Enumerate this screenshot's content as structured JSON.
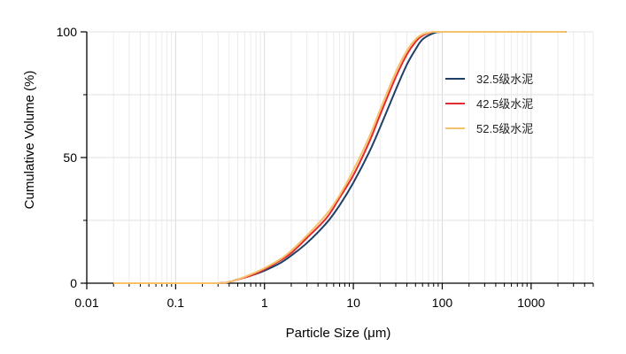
{
  "chart_data": {
    "type": "line",
    "xscale": "log",
    "xlim": [
      0.01,
      5000
    ],
    "ylim": [
      0,
      100
    ],
    "grid": true,
    "xlabel": "Particle Size (μm)",
    "ylabel": "Cumulative Volume (%)",
    "x_ticks": [
      "0.01",
      "0.1",
      "1",
      "10",
      "100",
      "1000"
    ],
    "y_ticks": [
      "0",
      "50",
      "100"
    ],
    "legend_position": "right",
    "series": [
      {
        "name": "32.5级水泥",
        "color": "#1f3f66",
        "x": [
          0.02,
          0.1,
          0.3,
          0.4,
          0.5,
          0.7,
          1,
          1.5,
          2,
          3,
          5,
          7,
          10,
          15,
          20,
          30,
          40,
          50,
          60,
          80,
          100,
          200,
          500,
          1000,
          2500
        ],
        "y": [
          0,
          0,
          0,
          0.5,
          1.5,
          3,
          5,
          8,
          11,
          16,
          24,
          31,
          40,
          52,
          62,
          77,
          87,
          93,
          97,
          99.5,
          100,
          100,
          100,
          100,
          100
        ]
      },
      {
        "name": "42.5级水泥",
        "color": "#e52b2b",
        "x": [
          0.02,
          0.1,
          0.3,
          0.4,
          0.5,
          0.7,
          1,
          1.5,
          2,
          3,
          5,
          7,
          10,
          15,
          20,
          30,
          40,
          50,
          60,
          80,
          100,
          200,
          500,
          1000,
          2500
        ],
        "y": [
          0,
          0,
          0,
          0.5,
          1.5,
          3,
          5.5,
          9,
          12,
          18,
          26,
          34,
          43,
          56,
          67,
          82,
          91,
          96,
          98.5,
          100,
          100,
          100,
          100,
          100,
          100
        ]
      },
      {
        "name": "52.5级水泥",
        "color": "#f5c26b",
        "x": [
          0.02,
          0.1,
          0.3,
          0.4,
          0.5,
          0.7,
          1,
          1.5,
          2,
          3,
          5,
          7,
          10,
          15,
          20,
          30,
          40,
          50,
          60,
          80,
          100,
          200,
          500,
          1000,
          2500
        ],
        "y": [
          0,
          0,
          0,
          0.5,
          1.5,
          3.5,
          6,
          9.5,
          13,
          19,
          27.5,
          35,
          45,
          58,
          69,
          84,
          92.5,
          97,
          99,
          100,
          100,
          100,
          100,
          100,
          100
        ]
      }
    ]
  }
}
